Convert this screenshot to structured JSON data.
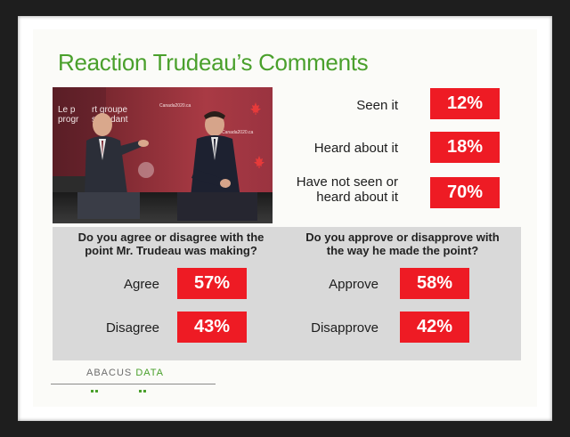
{
  "slide": {
    "title": "Reaction Trudeau’s Comments"
  },
  "photo": {
    "sign_lines": [
      "Le p",
      "progr"
    ],
    "sign_right_lines": [
      "rt groupe",
      "scendant"
    ],
    "brand": "Canada2020.ca"
  },
  "awareness": [
    {
      "label": "Seen it",
      "value": "12%"
    },
    {
      "label": "Heard about it",
      "value": "18%"
    },
    {
      "label_line1": "Have not seen or",
      "label_line2": "heard about it",
      "value": "70%"
    }
  ],
  "panel_left": {
    "question_line1": "Do you agree or disagree with the",
    "question_line2": "point Mr. Trudeau was making?",
    "rows": [
      {
        "label": "Agree",
        "value": "57%"
      },
      {
        "label": "Disagree",
        "value": "43%"
      }
    ]
  },
  "panel_right": {
    "question_line1": "Do you approve or disapprove with",
    "question_line2": "the way he made the point?",
    "rows": [
      {
        "label": "Approve",
        "value": "58%"
      },
      {
        "label": "Disapprove",
        "value": "42%"
      }
    ]
  },
  "logo": {
    "part1": "ABACUS",
    "part2": "DATA"
  },
  "colors": {
    "title_green": "#4aa02c",
    "badge_red": "#ee1b24",
    "panel_grey": "#d9d9d9"
  }
}
